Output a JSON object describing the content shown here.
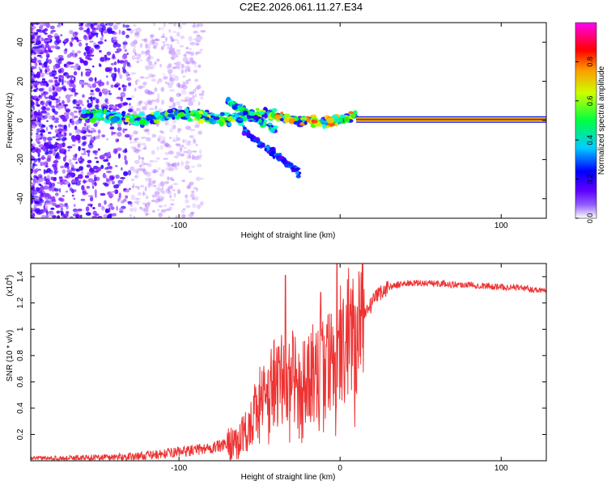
{
  "title": "C2E2.2026.061.11.27.E34",
  "chart_data": [
    {
      "type": "heatmap",
      "title": "",
      "xlabel": "Height of straight line (km)",
      "ylabel": "Frequency (Hz)",
      "xlim": [
        -192,
        128
      ],
      "ylim": [
        -50,
        50
      ],
      "xticks": [
        -100,
        0,
        100
      ],
      "xtick_labels": [
        "-100",
        "",
        "100"
      ],
      "yticks": [
        -40,
        -20,
        0,
        20,
        40
      ],
      "ytick_labels": [
        "-40",
        "-20",
        "0",
        "20",
        "40"
      ],
      "colorbar": {
        "label": "Normalized spectral amplitude",
        "range": [
          0,
          1
        ],
        "ticks": [
          0.0,
          0.2,
          0.4,
          0.6,
          0.8
        ],
        "tick_labels": [
          "0.0",
          "0.2",
          "0.4",
          "0.6",
          "0.8"
        ],
        "colormap": [
          "#ffffff",
          "#7000ff",
          "#0000ff",
          "#00ffff",
          "#00ff00",
          "#ffff00",
          "#ff8000",
          "#ff0000",
          "#ff00ff"
        ]
      },
      "features": [
        {
          "name": "noise-scatter",
          "x": [
            -192,
            -130
          ],
          "y": [
            -50,
            50
          ],
          "amplitude": 0.12
        },
        {
          "name": "carrier-band",
          "x": [
            -160,
            10
          ],
          "y_center": 2,
          "amplitude": 0.45
        },
        {
          "name": "upper-branch",
          "x": [
            -70,
            -40
          ],
          "y": [
            10,
            -5
          ],
          "amplitude": 0.4
        },
        {
          "name": "lower-branch",
          "x": [
            -60,
            -25
          ],
          "y": [
            -5,
            -27
          ],
          "amplitude": 0.2
        },
        {
          "name": "clean-signal",
          "x": [
            10,
            128
          ],
          "y": 0.5,
          "amplitude": 1.0
        }
      ]
    },
    {
      "type": "line",
      "title": "",
      "xlabel": "Height of straight line (km)",
      "ylabel": "SNR (10 * v/v)",
      "yscale_label": "(x10",
      "yscale_exponent": "4",
      "xlim": [
        -192,
        128
      ],
      "ylim": [
        0,
        1.5
      ],
      "xticks": [
        -100,
        0,
        100
      ],
      "xtick_labels": [
        "-100",
        "0",
        "100"
      ],
      "yticks": [
        0.2,
        0.4,
        0.6,
        0.8,
        1.0,
        1.2,
        1.4
      ],
      "ytick_labels": [
        "0.2",
        "0.4",
        "0.6",
        "0.8",
        "1",
        "1.2",
        "1.4"
      ],
      "series": [
        {
          "name": "SNR",
          "color": "#ee3333",
          "x": [
            -192,
            -170,
            -150,
            -130,
            -110,
            -100,
            -90,
            -80,
            -70,
            -65,
            -60,
            -55,
            -50,
            -45,
            -40,
            -35,
            -30,
            -25,
            -20,
            -15,
            -10,
            -5,
            0,
            5,
            10,
            15,
            20,
            25,
            30,
            40,
            50,
            60,
            70,
            80,
            90,
            100,
            110,
            120,
            128
          ],
          "values": [
            0.02,
            0.02,
            0.025,
            0.03,
            0.05,
            0.07,
            0.08,
            0.1,
            0.12,
            0.15,
            0.2,
            0.3,
            0.45,
            0.5,
            0.6,
            0.65,
            0.65,
            0.55,
            0.6,
            0.7,
            0.75,
            0.8,
            0.95,
            1.0,
            1.05,
            1.1,
            1.2,
            1.28,
            1.32,
            1.35,
            1.35,
            1.35,
            1.34,
            1.34,
            1.33,
            1.32,
            1.32,
            1.3,
            1.3
          ]
        }
      ],
      "spikes": [
        {
          "x": -34,
          "value": 1.41
        },
        {
          "x": -2,
          "value": 1.5
        },
        {
          "x": -12,
          "value": 1.28
        }
      ]
    }
  ]
}
